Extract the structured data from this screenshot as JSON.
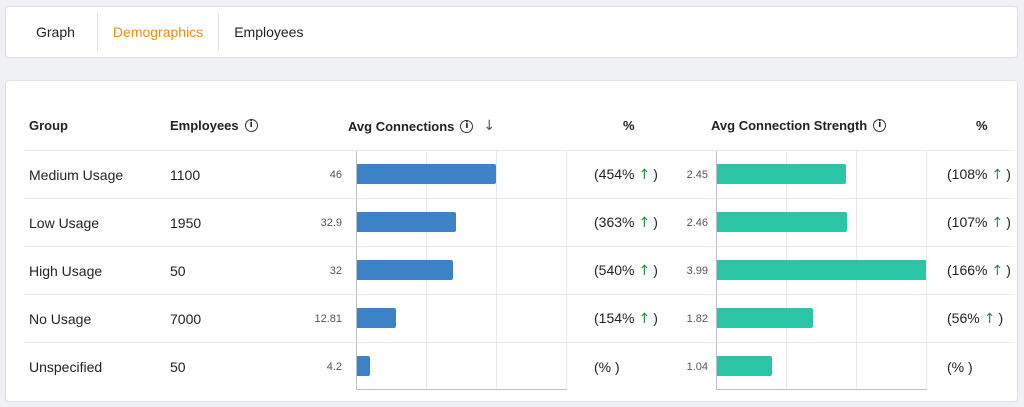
{
  "tabs": [
    {
      "label": "Graph",
      "active": false
    },
    {
      "label": "Demographics",
      "active": true
    },
    {
      "label": "Employees",
      "active": false
    }
  ],
  "accent_color": "#ef8c12",
  "table": {
    "headers": {
      "group": "Group",
      "employees": "Employees",
      "avg_connections": "Avg Connections",
      "pct1": "%",
      "avg_strength": "Avg Connection Strength",
      "pct2": "%"
    },
    "bar_colors": {
      "connections": "#3d82c6",
      "strength": "#2bc4a7"
    },
    "bar_max": {
      "connections": 70,
      "strength": 4.0
    },
    "rows": [
      {
        "group": "Medium Usage",
        "employees": "1100",
        "avg_conn": "46",
        "avg_conn_value": 46,
        "pct_conn": "454%",
        "conn_up": true,
        "avg_strength": "2.45",
        "avg_strength_value": 2.45,
        "pct_strength": "108%",
        "strength_up": true
      },
      {
        "group": "Low Usage",
        "employees": "1950",
        "avg_conn": "32.9",
        "avg_conn_value": 32.9,
        "pct_conn": "363%",
        "conn_up": true,
        "avg_strength": "2.46",
        "avg_strength_value": 2.46,
        "pct_strength": "107%",
        "strength_up": true
      },
      {
        "group": "High Usage",
        "employees": "50",
        "avg_conn": "32",
        "avg_conn_value": 32,
        "pct_conn": "540%",
        "conn_up": true,
        "avg_strength": "3.99",
        "avg_strength_value": 3.99,
        "pct_strength": "166%",
        "strength_up": true
      },
      {
        "group": "No Usage",
        "employees": "7000",
        "avg_conn": "12.81",
        "avg_conn_value": 12.81,
        "pct_conn": "154%",
        "conn_up": true,
        "avg_strength": "1.82",
        "avg_strength_value": 1.82,
        "pct_strength": "56%",
        "strength_up": true
      },
      {
        "group": "Unspecified",
        "employees": "50",
        "avg_conn": "4.2",
        "avg_conn_value": 4.2,
        "pct_conn": "%",
        "conn_up": false,
        "avg_strength": "1.04",
        "avg_strength_value": 1.04,
        "pct_strength": "%",
        "strength_up": false
      }
    ]
  }
}
